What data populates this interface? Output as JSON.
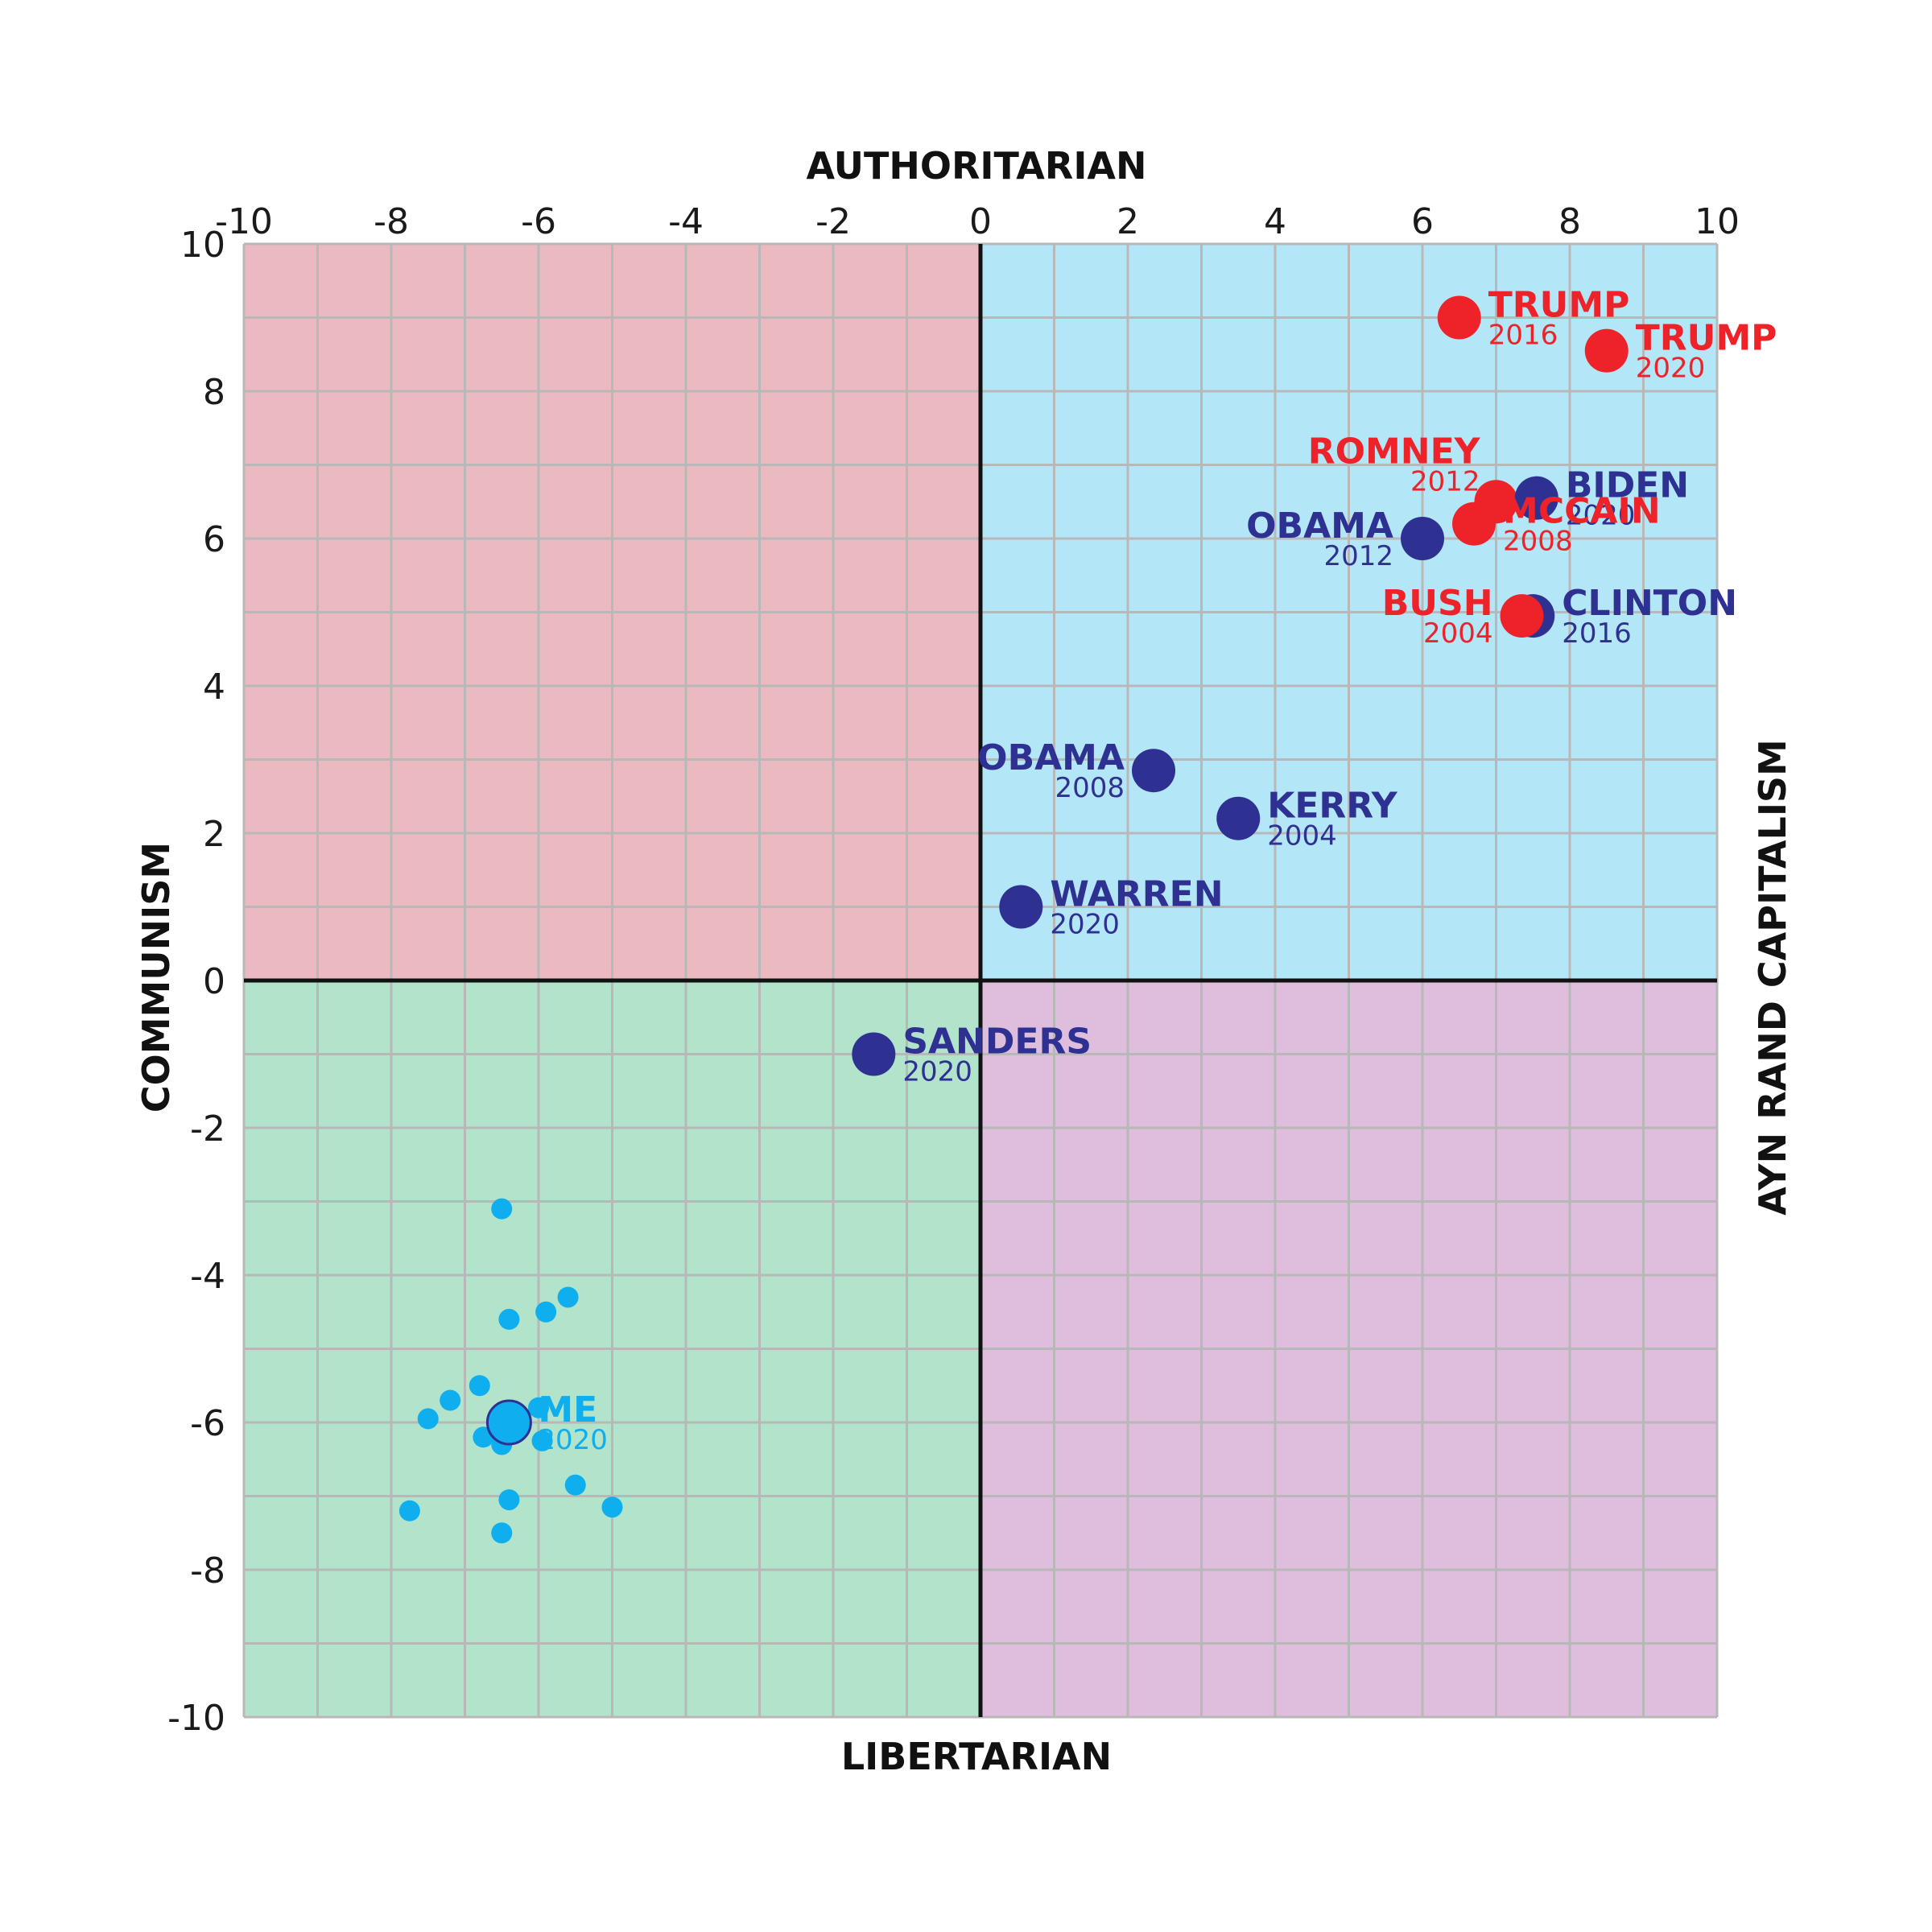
{
  "chart_data": {
    "type": "scatter",
    "title": "",
    "axis_titles": {
      "top": "AUTHORITARIAN",
      "bottom": "LIBERTARIAN",
      "left": "COMMUNISM",
      "right": "AYN RAND CAPITALISM"
    },
    "xlim": [
      -10,
      10
    ],
    "ylim": [
      -10,
      10
    ],
    "x_ticks": [
      "-10",
      "-8",
      "-6",
      "-4",
      "-2",
      "0",
      "2",
      "4",
      "6",
      "8",
      "10"
    ],
    "y_ticks": [
      "10",
      "8",
      "6",
      "4",
      "2",
      "0",
      "-2",
      "-4",
      "-6",
      "-8",
      "-10"
    ],
    "grid": true,
    "quadrant_colors": {
      "top_left": "#ebbac0",
      "top_right": "#b3e6f7",
      "bottom_left": "#b2e3cb",
      "bottom_right": "#dfbddd"
    },
    "colors": {
      "republican": "#ee2229",
      "democrat": "#2e3191",
      "me": "#0eaeef",
      "grid": "#b8b8b8",
      "axis": "#111111"
    },
    "labeled_points": [
      {
        "name": "TRUMP",
        "year": "2016",
        "x": 6.5,
        "y": 9.0,
        "party": "republican",
        "label_side": "right"
      },
      {
        "name": "TRUMP",
        "year": "2020",
        "x": 8.5,
        "y": 8.55,
        "party": "republican",
        "label_side": "right"
      },
      {
        "name": "ROMNEY",
        "year": "2012",
        "x": 7.0,
        "y": 6.5,
        "party": "republican",
        "label_side": "left-above"
      },
      {
        "name": "BIDEN",
        "year": "2020",
        "x": 7.55,
        "y": 6.55,
        "party": "democrat",
        "label_side": "right"
      },
      {
        "name": "MCCAIN",
        "year": "2008",
        "x": 6.7,
        "y": 6.2,
        "party": "republican",
        "label_side": "right"
      },
      {
        "name": "OBAMA",
        "year": "2012",
        "x": 6.0,
        "y": 6.0,
        "party": "democrat",
        "label_side": "left"
      },
      {
        "name": "CLINTON",
        "year": "2016",
        "x": 7.5,
        "y": 4.95,
        "party": "democrat",
        "label_side": "right"
      },
      {
        "name": "BUSH",
        "year": "2004",
        "x": 7.35,
        "y": 4.95,
        "party": "republican",
        "label_side": "left"
      },
      {
        "name": "OBAMA",
        "year": "2008",
        "x": 2.35,
        "y": 2.85,
        "party": "democrat",
        "label_side": "left"
      },
      {
        "name": "KERRY",
        "year": "2004",
        "x": 3.5,
        "y": 2.2,
        "party": "democrat",
        "label_side": "right"
      },
      {
        "name": "WARREN",
        "year": "2020",
        "x": 0.55,
        "y": 1.0,
        "party": "democrat",
        "label_side": "right"
      },
      {
        "name": "SANDERS",
        "year": "2020",
        "x": -1.45,
        "y": -1.0,
        "party": "democrat",
        "label_side": "right"
      },
      {
        "name": "ME",
        "year": "2020",
        "x": -6.4,
        "y": -6.0,
        "party": "me",
        "label_side": "right"
      }
    ],
    "small_points": [
      {
        "x": -6.5,
        "y": -3.1
      },
      {
        "x": -5.6,
        "y": -4.3
      },
      {
        "x": -5.9,
        "y": -4.5
      },
      {
        "x": -6.4,
        "y": -4.6
      },
      {
        "x": -6.8,
        "y": -5.5
      },
      {
        "x": -7.2,
        "y": -5.7
      },
      {
        "x": -7.5,
        "y": -5.95
      },
      {
        "x": -6.0,
        "y": -5.8
      },
      {
        "x": -6.75,
        "y": -6.2
      },
      {
        "x": -5.95,
        "y": -6.25
      },
      {
        "x": -6.5,
        "y": -6.3
      },
      {
        "x": -5.5,
        "y": -6.85
      },
      {
        "x": -6.4,
        "y": -7.05
      },
      {
        "x": -5.0,
        "y": -7.15
      },
      {
        "x": -7.75,
        "y": -7.2
      },
      {
        "x": -6.5,
        "y": -7.5
      }
    ]
  }
}
